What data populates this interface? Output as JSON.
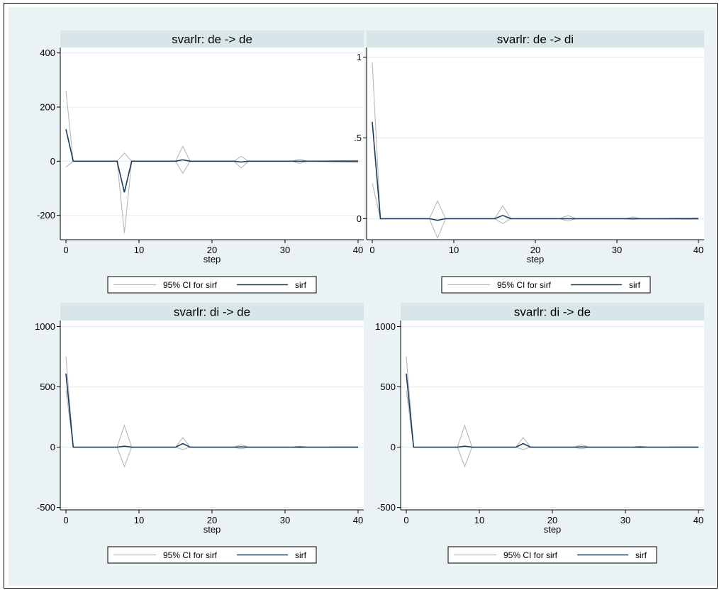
{
  "colors": {
    "background": "#eaf2f3",
    "panel_strip": "#d8e6ea",
    "plot_bg": "#ffffff",
    "ci_line": "#b8b8b8",
    "sirf_line": "#1a3b5c",
    "grid": "#e6ecee"
  },
  "chart_data": [
    {
      "type": "line",
      "title": "svarlr: de -> de",
      "xlabel": "step",
      "ylabel": "",
      "xlim": [
        0,
        40
      ],
      "ylim": [
        -290,
        420
      ],
      "xticks": [
        0,
        10,
        20,
        30,
        40
      ],
      "yticks": [
        -200,
        0,
        200,
        400
      ],
      "ytick_labels": [
        "-200",
        "0",
        "200",
        "400"
      ],
      "grid": true,
      "legend": {
        "placement": "bottom",
        "labels": [
          "95% CI for sirf",
          "sirf"
        ]
      },
      "series": [
        {
          "name": "95% CI for sirf",
          "role": "ci_upper",
          "x": [
            0,
            1,
            7,
            8,
            9,
            15,
            16,
            17,
            23,
            24,
            25,
            31,
            32,
            33,
            40
          ],
          "y": [
            260,
            0,
            0,
            30,
            0,
            0,
            55,
            0,
            0,
            18,
            0,
            0,
            8,
            0,
            3
          ]
        },
        {
          "name": "95% CI for sirf",
          "role": "ci_lower",
          "x": [
            0,
            1,
            7,
            8,
            9,
            15,
            16,
            17,
            23,
            24,
            25,
            31,
            32,
            33,
            40
          ],
          "y": [
            -22,
            0,
            0,
            -265,
            0,
            0,
            -45,
            0,
            0,
            -25,
            0,
            0,
            -8,
            0,
            -5
          ]
        },
        {
          "name": "sirf",
          "role": "estimate",
          "x": [
            0,
            1,
            7,
            8,
            9,
            15,
            16,
            17,
            23,
            24,
            25,
            31,
            32,
            33,
            40
          ],
          "y": [
            118,
            0,
            0,
            -115,
            0,
            0,
            5,
            0,
            0,
            -3,
            0,
            0,
            0,
            0,
            0
          ]
        }
      ]
    },
    {
      "type": "line",
      "title": "svarlr: de -> di",
      "xlabel": "step",
      "ylabel": "",
      "xlim": [
        0,
        40
      ],
      "ylim": [
        -0.13,
        1.06
      ],
      "xticks": [
        0,
        10,
        20,
        30,
        40
      ],
      "yticks": [
        0,
        0.5,
        1
      ],
      "ytick_labels": [
        "0",
        ".5",
        "1"
      ],
      "grid": true,
      "legend": {
        "placement": "bottom",
        "labels": [
          "95% CI for sirf",
          "sirf"
        ]
      },
      "series": [
        {
          "name": "95% CI for sirf",
          "role": "ci_upper",
          "x": [
            0,
            1,
            7,
            8,
            9,
            15,
            16,
            17,
            23,
            24,
            25,
            31,
            32,
            33,
            40
          ],
          "y": [
            0.97,
            0,
            0,
            0.11,
            0,
            0,
            0.08,
            0,
            0,
            0.02,
            0,
            0,
            0.01,
            0,
            0.005
          ]
        },
        {
          "name": "95% CI for sirf",
          "role": "ci_lower",
          "x": [
            0,
            1,
            7,
            8,
            9,
            15,
            16,
            17,
            23,
            24,
            25,
            31,
            32,
            33,
            40
          ],
          "y": [
            0.22,
            0,
            0,
            -0.12,
            0,
            0,
            -0.03,
            0,
            0,
            -0.015,
            0,
            0,
            -0.005,
            0,
            -0.003
          ]
        },
        {
          "name": "sirf",
          "role": "estimate",
          "x": [
            0,
            1,
            7,
            8,
            9,
            15,
            16,
            17,
            23,
            24,
            25,
            31,
            32,
            33,
            40
          ],
          "y": [
            0.6,
            0,
            0,
            -0.01,
            0,
            0,
            0.02,
            0,
            0,
            0,
            0,
            0,
            0,
            0,
            0
          ]
        }
      ]
    },
    {
      "type": "line",
      "title": "svarlr: di -> de",
      "xlabel": "step",
      "ylabel": "",
      "xlim": [
        0,
        40
      ],
      "ylim": [
        -520,
        1050
      ],
      "xticks": [
        0,
        10,
        20,
        30,
        40
      ],
      "yticks": [
        -500,
        0,
        500,
        1000
      ],
      "ytick_labels": [
        "-500",
        "0",
        "500",
        "1000"
      ],
      "grid": true,
      "legend": {
        "placement": "bottom",
        "labels": [
          "95% CI for sirf",
          "sirf"
        ]
      },
      "series": [
        {
          "name": "95% CI for sirf",
          "role": "ci_upper",
          "x": [
            0,
            1,
            7,
            8,
            9,
            15,
            16,
            17,
            23,
            24,
            25,
            31,
            32,
            33,
            40
          ],
          "y": [
            750,
            0,
            0,
            180,
            0,
            0,
            80,
            0,
            0,
            20,
            0,
            0,
            8,
            0,
            3
          ]
        },
        {
          "name": "95% CI for sirf",
          "role": "ci_lower",
          "x": [
            0,
            1,
            7,
            8,
            9,
            15,
            16,
            17,
            23,
            24,
            25,
            31,
            32,
            33,
            40
          ],
          "y": [
            470,
            0,
            0,
            -160,
            0,
            0,
            -20,
            0,
            0,
            -15,
            0,
            0,
            -5,
            0,
            -3
          ]
        },
        {
          "name": "sirf",
          "role": "estimate",
          "x": [
            0,
            1,
            7,
            8,
            9,
            15,
            16,
            17,
            23,
            24,
            25,
            31,
            32,
            33,
            40
          ],
          "y": [
            610,
            0,
            0,
            8,
            0,
            0,
            30,
            0,
            0,
            2,
            0,
            0,
            1,
            0,
            0
          ]
        }
      ]
    },
    {
      "type": "line",
      "title": "svarlr: di -> de",
      "xlabel": "step",
      "ylabel": "",
      "xlim": [
        0,
        40
      ],
      "ylim": [
        -520,
        1050
      ],
      "xticks": [
        0,
        10,
        20,
        30,
        40
      ],
      "yticks": [
        -500,
        0,
        500,
        1000
      ],
      "ytick_labels": [
        "-500",
        "0",
        "500",
        "1000"
      ],
      "grid": true,
      "legend": {
        "placement": "bottom",
        "labels": [
          "95% CI for sirf",
          "sirf"
        ]
      },
      "series": [
        {
          "name": "95% CI for sirf",
          "role": "ci_upper",
          "x": [
            0,
            1,
            7,
            8,
            9,
            15,
            16,
            17,
            23,
            24,
            25,
            31,
            32,
            33,
            40
          ],
          "y": [
            750,
            0,
            0,
            180,
            0,
            0,
            80,
            0,
            0,
            20,
            0,
            0,
            8,
            0,
            3
          ]
        },
        {
          "name": "95% CI for sirf",
          "role": "ci_lower",
          "x": [
            0,
            1,
            7,
            8,
            9,
            15,
            16,
            17,
            23,
            24,
            25,
            31,
            32,
            33,
            40
          ],
          "y": [
            470,
            0,
            0,
            -160,
            0,
            0,
            -20,
            0,
            0,
            -15,
            0,
            0,
            -5,
            0,
            -3
          ]
        },
        {
          "name": "sirf",
          "role": "estimate",
          "x": [
            0,
            1,
            7,
            8,
            9,
            15,
            16,
            17,
            23,
            24,
            25,
            31,
            32,
            33,
            40
          ],
          "y": [
            610,
            0,
            0,
            8,
            0,
            0,
            30,
            0,
            0,
            2,
            0,
            0,
            1,
            0,
            0
          ]
        }
      ]
    }
  ]
}
